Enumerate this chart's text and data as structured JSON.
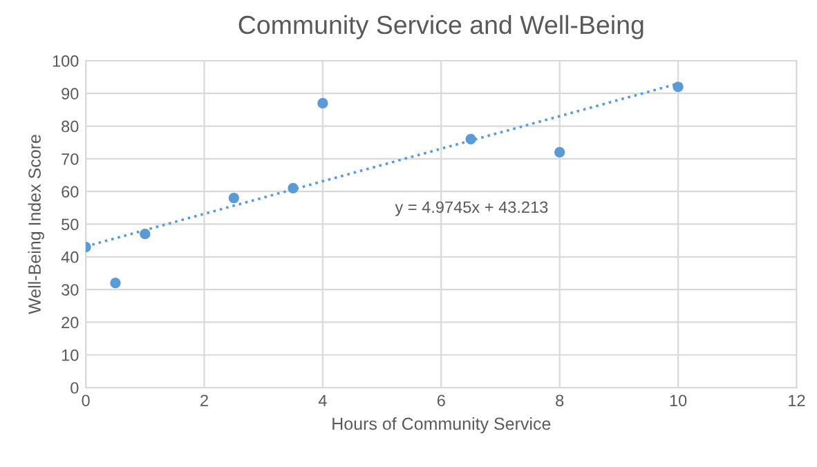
{
  "chart_data": {
    "type": "scatter",
    "title": "Community Service and Well-Being",
    "xlabel": "Hours of Community Service",
    "ylabel": "Well-Being Index Score",
    "series": [
      {
        "color": "#5b9bd5",
        "x": [
          0,
          0.5,
          1,
          2.5,
          3.5,
          4,
          6.5,
          8,
          10
        ],
        "values": [
          43,
          32,
          47,
          58,
          61,
          87,
          76,
          72,
          92
        ],
        "marker": "circle"
      },
      {
        "type": "line",
        "color": "#5b9bd5",
        "x": [
          0,
          10
        ],
        "values": [
          43.2,
          93.0
        ],
        "line_style": "dotted",
        "marker": "none"
      }
    ],
    "annotations": [
      "y = 4.9745x + 43.213"
    ],
    "xlim": [
      0,
      12
    ],
    "xticks": [
      0,
      2,
      4,
      6,
      8,
      10,
      12
    ],
    "ylim": [
      0,
      100
    ],
    "yticks": [
      0,
      10,
      20,
      30,
      40,
      50,
      60,
      70,
      80,
      90,
      100
    ],
    "grid": true,
    "legend": false
  }
}
